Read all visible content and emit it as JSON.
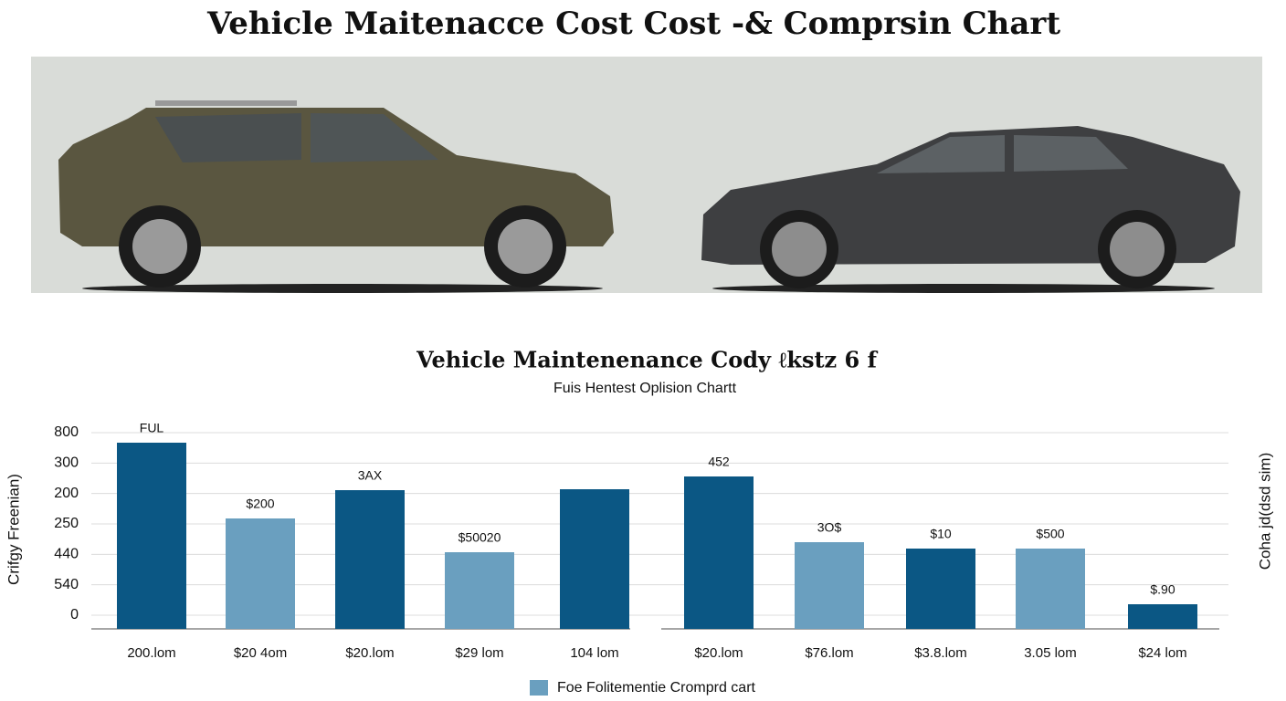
{
  "page_title": "Vehicle Maitenacce Cost Cost -& Comprsin Chart",
  "chart_data": {
    "type": "bar",
    "title": "Vehicle Maintenenance Cody ℓkstz 6 f",
    "subtitle": "Fuis Hentest Oplision Chartt",
    "y_label": "Crifgy Freenian)",
    "y2_label": "Coha jd(dsd sim)",
    "legend": "Foe Folitementie Cromprd cart",
    "legend_color": "#6a9fbf",
    "categories": [
      "200.lom",
      "$20 4om",
      "$20.lom",
      "$29 lom",
      "104 lom",
      "$20.lom",
      "$76.lom",
      "$3.8.lom",
      "3.05 lom",
      "$24 lom"
    ],
    "values": [
      5.67,
      3.18,
      4.11,
      2.07,
      4.14,
      4.56,
      2.4,
      2.19,
      2.19,
      0.36
    ],
    "colors": [
      "#0b5784",
      "#6a9fbf",
      "#0b5784",
      "#6a9fbf",
      "#0b5784",
      "#0b5784",
      "#6a9fbf",
      "#0b5784",
      "#6a9fbf",
      "#0b5784"
    ],
    "annotations": [
      "FUL",
      "$200",
      "3AX",
      "$50020",
      null,
      "452",
      "3O$",
      "$10",
      "$500",
      "$.90"
    ],
    "ylim": [
      -0.45,
      6
    ],
    "yticks": [
      0,
      {
        "value": 1,
        "label": "540"
      },
      {
        "value": 2,
        "label": "440"
      },
      {
        "value": 3,
        "label": "250"
      },
      {
        "value": 4,
        "label": "200"
      },
      {
        "value": 5,
        "label": "300"
      },
      {
        "value": 6,
        "label": "800"
      }
    ],
    "grid": true
  }
}
